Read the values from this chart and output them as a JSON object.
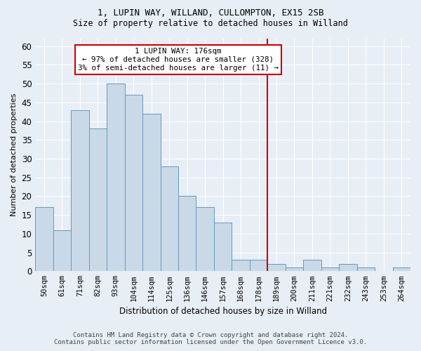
{
  "title1": "1, LUPIN WAY, WILLAND, CULLOMPTON, EX15 2SB",
  "title2": "Size of property relative to detached houses in Willand",
  "xlabel": "Distribution of detached houses by size in Willand",
  "ylabel": "Number of detached properties",
  "categories": [
    "50sqm",
    "61sqm",
    "71sqm",
    "82sqm",
    "93sqm",
    "104sqm",
    "114sqm",
    "125sqm",
    "136sqm",
    "146sqm",
    "157sqm",
    "168sqm",
    "178sqm",
    "189sqm",
    "200sqm",
    "211sqm",
    "221sqm",
    "232sqm",
    "243sqm",
    "253sqm",
    "264sqm"
  ],
  "values": [
    17,
    11,
    43,
    38,
    50,
    47,
    42,
    28,
    20,
    17,
    13,
    3,
    3,
    2,
    1,
    3,
    1,
    2,
    1,
    0,
    1
  ],
  "bar_color": "#c9d9e8",
  "bar_edge_color": "#6699bb",
  "red_line_index": 12.5,
  "annotation_title": "1 LUPIN WAY: 176sqm",
  "annotation_line1": "← 97% of detached houses are smaller (328)",
  "annotation_line2": "3% of semi-detached houses are larger (11) →",
  "annotation_box_color": "#ffffff",
  "annotation_box_edge": "#cc0000",
  "red_line_color": "#cc0000",
  "background_color": "#e8eef5",
  "footer1": "Contains HM Land Registry data © Crown copyright and database right 2024.",
  "footer2": "Contains public sector information licensed under the Open Government Licence v3.0.",
  "ylim": [
    0,
    62
  ],
  "yticks": [
    0,
    5,
    10,
    15,
    20,
    25,
    30,
    35,
    40,
    45,
    50,
    55,
    60
  ]
}
